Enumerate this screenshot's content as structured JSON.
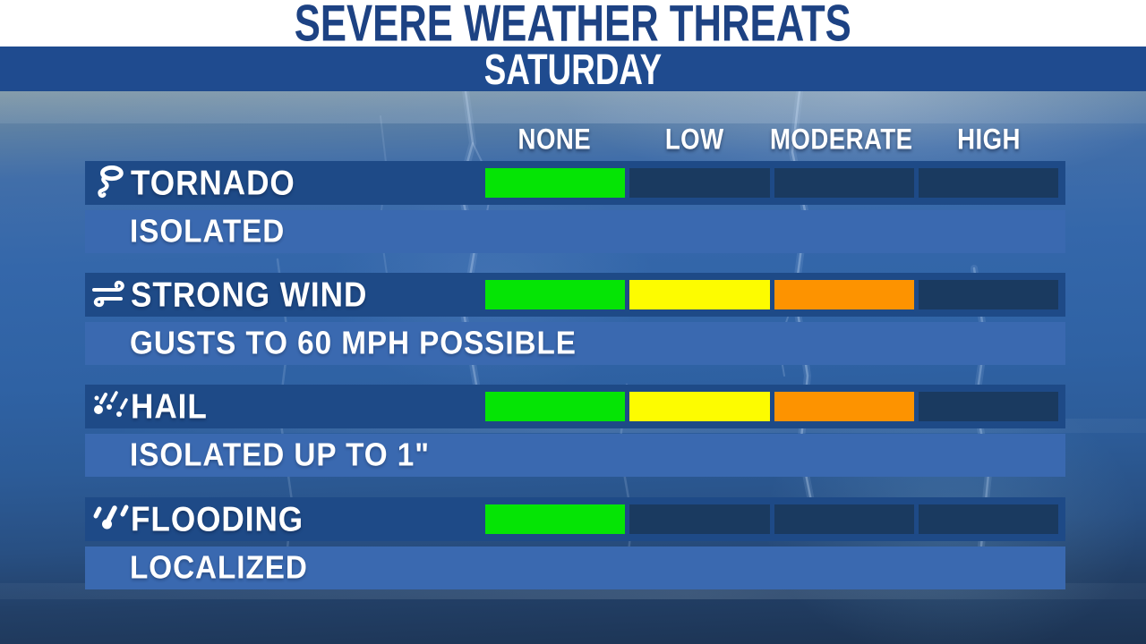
{
  "header": {
    "title": "SEVERE WEATHER THREATS",
    "day": "SATURDAY"
  },
  "scale": {
    "levels": [
      "NONE",
      "LOW",
      "MODERATE",
      "HIGH"
    ]
  },
  "rows": [
    {
      "icon": "tornado-icon",
      "label": "TORNADO",
      "detail": "ISOLATED",
      "level": 1
    },
    {
      "icon": "wind-icon",
      "label": "STRONG WIND",
      "detail": "GUSTS TO 60 MPH POSSIBLE",
      "level": 3
    },
    {
      "icon": "hail-icon",
      "label": "HAIL",
      "detail": "ISOLATED UP TO 1\"",
      "level": 3
    },
    {
      "icon": "flooding-icon",
      "label": "FLOODING",
      "detail": "LOCALIZED",
      "level": 1
    }
  ],
  "colors": {
    "segments": [
      "#05e405",
      "#fdfc00",
      "#fd9300"
    ],
    "empty": "#1a3a60",
    "row_band": "#1e4a87",
    "detail_band": "#3a69b0",
    "banner_navy": "#1f4b8f",
    "title_text": "#1d4283"
  },
  "chart_data": {
    "type": "bar",
    "title": "SEVERE WEATHER THREATS",
    "subtitle": "SATURDAY",
    "categories": [
      "TORNADO",
      "STRONG WIND",
      "HAIL",
      "FLOODING"
    ],
    "scale_labels": [
      "NONE",
      "LOW",
      "MODERATE",
      "HIGH"
    ],
    "values": [
      1,
      3,
      3,
      1
    ],
    "value_meaning": "number of 4 scale segments filled; 1 = NONE only, 3 = through MODERATE",
    "annotations": [
      "ISOLATED",
      "GUSTS TO 60 MPH POSSIBLE",
      "ISOLATED UP TO 1\"",
      "LOCALIZED"
    ],
    "segment_fill_colors": [
      "#05e405",
      "#fdfc00",
      "#fd9300"
    ],
    "empty_segment_color": "#1a3a60",
    "legend_position": "top",
    "grid": false
  }
}
